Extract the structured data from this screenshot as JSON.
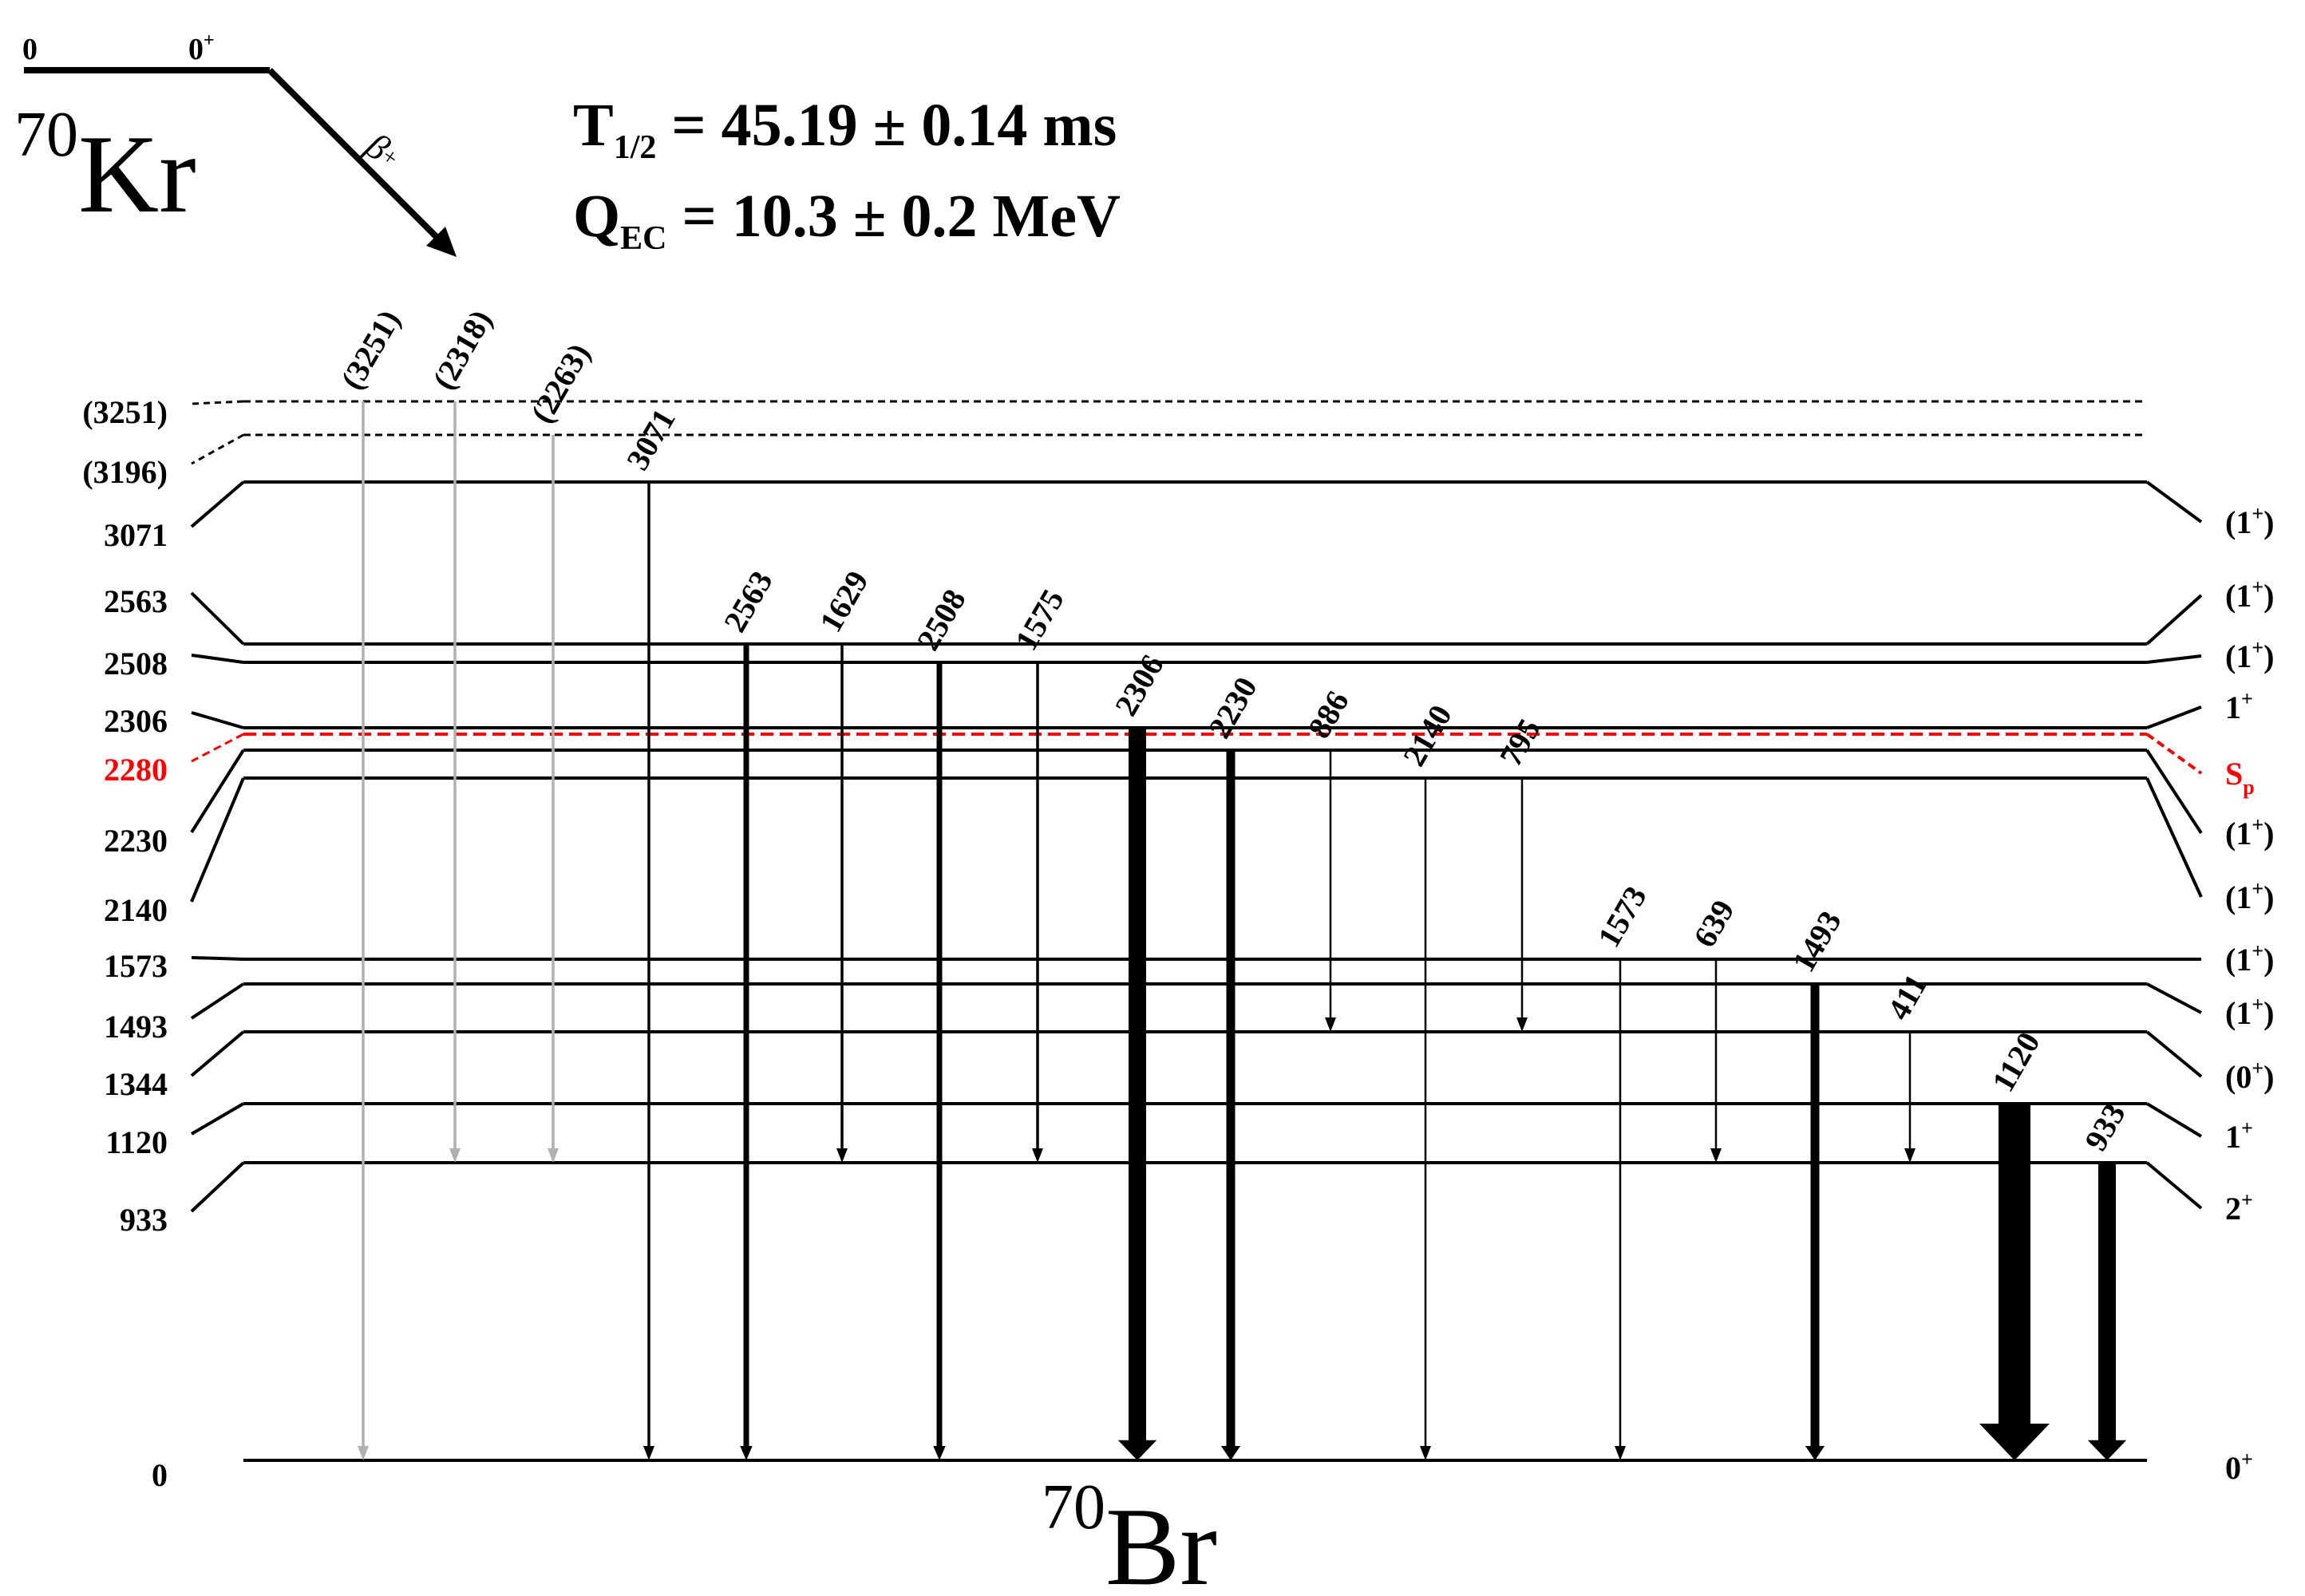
{
  "parent": {
    "energy": "0",
    "spin": "0",
    "spin_sup": "+",
    "mass_number": "70",
    "symbol": "Kr",
    "decay_label": "β",
    "decay_label_sup": "+"
  },
  "decay_info": {
    "half_life_symbol": "T",
    "half_life_sub": "1/2",
    "half_life_value": " = 45.19 ± 0.14 ms",
    "q_symbol": "Q",
    "q_sub": "EC",
    "q_value": " = 10.3 ± 0.2 MeV"
  },
  "daughter": {
    "mass_number": "70",
    "symbol": "Br"
  },
  "levels": [
    {
      "id": "l3251",
      "energy": 3251,
      "label": "(3251)",
      "spin": "",
      "style": "dashed",
      "color": "#000000"
    },
    {
      "id": "l3196",
      "energy": 3196,
      "label": "(3196)",
      "spin": "",
      "style": "dashed",
      "color": "#000000"
    },
    {
      "id": "l3071",
      "energy": 3071,
      "label": "3071",
      "spin": "(1+)",
      "style": "solid",
      "color": "#000000"
    },
    {
      "id": "l2563",
      "energy": 2563,
      "label": "2563",
      "spin": "(1+)",
      "style": "solid",
      "color": "#000000"
    },
    {
      "id": "l2508",
      "energy": 2508,
      "label": "2508",
      "spin": "(1+)",
      "style": "solid",
      "color": "#000000"
    },
    {
      "id": "l2306",
      "energy": 2306,
      "label": "2306",
      "spin": "1+",
      "style": "solid",
      "color": "#000000"
    },
    {
      "id": "l2280",
      "energy": 2280,
      "label": "2280",
      "spin": "Sp",
      "style": "dashed",
      "color": "#ff0000"
    },
    {
      "id": "l2230",
      "energy": 2230,
      "label": "2230",
      "spin": "(1+)",
      "style": "solid",
      "color": "#000000"
    },
    {
      "id": "l2140",
      "energy": 2140,
      "label": "2140",
      "spin": "(1+)",
      "style": "solid",
      "color": "#000000"
    },
    {
      "id": "l1573",
      "energy": 1573,
      "label": "1573",
      "spin": "(1+)",
      "style": "solid",
      "color": "#000000"
    },
    {
      "id": "l1493",
      "energy": 1493,
      "label": "1493",
      "spin": "(1+)",
      "style": "solid",
      "color": "#000000"
    },
    {
      "id": "l1344",
      "energy": 1344,
      "label": "1344",
      "spin": "(0+)",
      "style": "solid",
      "color": "#000000"
    },
    {
      "id": "l1120",
      "energy": 1120,
      "label": "1120",
      "spin": "1+",
      "style": "solid",
      "color": "#000000"
    },
    {
      "id": "l933",
      "energy": 933,
      "label": "933",
      "spin": "2+",
      "style": "solid",
      "color": "#000000"
    },
    {
      "id": "l0",
      "energy": 0,
      "label": "0",
      "spin": "0+",
      "style": "solid",
      "color": "#000000"
    }
  ],
  "transitions": [
    {
      "label": "(3251)",
      "from": 3251,
      "to": 0,
      "intensity": "weak",
      "tentative": true
    },
    {
      "label": "(2318)",
      "from": 3251,
      "to": 933,
      "intensity": "weak",
      "tentative": true
    },
    {
      "label": "(2263)",
      "from": 3196,
      "to": 933,
      "intensity": "weak",
      "tentative": true
    },
    {
      "label": "3071",
      "from": 3071,
      "to": 0,
      "intensity": "weak",
      "tentative": false
    },
    {
      "label": "2563",
      "from": 2563,
      "to": 0,
      "intensity": "medium",
      "tentative": false
    },
    {
      "label": "1629",
      "from": 2563,
      "to": 933,
      "intensity": "weak",
      "tentative": false
    },
    {
      "label": "2508",
      "from": 2508,
      "to": 0,
      "intensity": "medium",
      "tentative": false
    },
    {
      "label": "1575",
      "from": 2508,
      "to": 933,
      "intensity": "weak",
      "tentative": false
    },
    {
      "label": "2306",
      "from": 2306,
      "to": 0,
      "intensity": "very strong",
      "tentative": false
    },
    {
      "label": "2230",
      "from": 2230,
      "to": 0,
      "intensity": "strong",
      "tentative": false
    },
    {
      "label": "886",
      "from": 2230,
      "to": 1344,
      "intensity": "very weak",
      "tentative": false
    },
    {
      "label": "2140",
      "from": 2140,
      "to": 0,
      "intensity": "very weak",
      "tentative": false
    },
    {
      "label": "795",
      "from": 2140,
      "to": 1344,
      "intensity": "very weak",
      "tentative": false
    },
    {
      "label": "1573",
      "from": 1573,
      "to": 0,
      "intensity": "very weak",
      "tentative": false
    },
    {
      "label": "639",
      "from": 1573,
      "to": 933,
      "intensity": "very weak",
      "tentative": false
    },
    {
      "label": "1493",
      "from": 1493,
      "to": 0,
      "intensity": "strong",
      "tentative": false
    },
    {
      "label": "411",
      "from": 1344,
      "to": 933,
      "intensity": "very weak",
      "tentative": false
    },
    {
      "label": "1120",
      "from": 1120,
      "to": 0,
      "intensity": "strongest",
      "tentative": false
    },
    {
      "label": "933",
      "from": 933,
      "to": 0,
      "intensity": "very strong",
      "tentative": false
    }
  ],
  "colors": {
    "main": "#000000",
    "separation_energy": "#ff0000",
    "tentative": "#b0b0b0"
  }
}
